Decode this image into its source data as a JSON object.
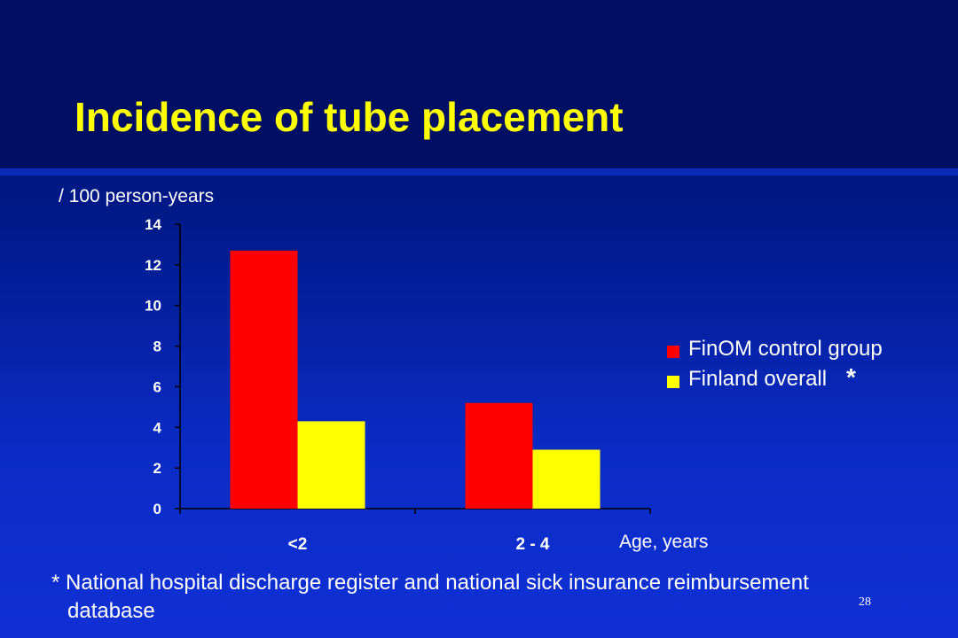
{
  "slide": {
    "title": "Incidence of tube placement",
    "page_number": "28",
    "footnote_line1": "* National hospital discharge register and national sick insurance reimbursement",
    "footnote_line2": "database"
  },
  "colors": {
    "title": "#ffff00",
    "series_red": "#ff0000",
    "series_yellow": "#ffff00",
    "axis": "#000000"
  },
  "chart_data": {
    "type": "bar",
    "ylabel": "/ 100 person-years",
    "xlabel": "Age, years",
    "categories": [
      "<2",
      "2 - 4"
    ],
    "series": [
      {
        "name": "FinOM control group",
        "values": [
          12.7,
          5.2
        ],
        "color": "#ff0000"
      },
      {
        "name": "Finland overall",
        "values": [
          4.3,
          2.9
        ],
        "color": "#ffff00"
      }
    ],
    "ylim": [
      0,
      14
    ],
    "yticks": [
      0,
      2,
      4,
      6,
      8,
      10,
      12,
      14
    ],
    "ytick_labels": [
      "0",
      "2",
      "4",
      "6",
      "8",
      "10",
      "12",
      "14"
    ],
    "legend_position": "right",
    "legend_marker": "*",
    "grid": false
  }
}
